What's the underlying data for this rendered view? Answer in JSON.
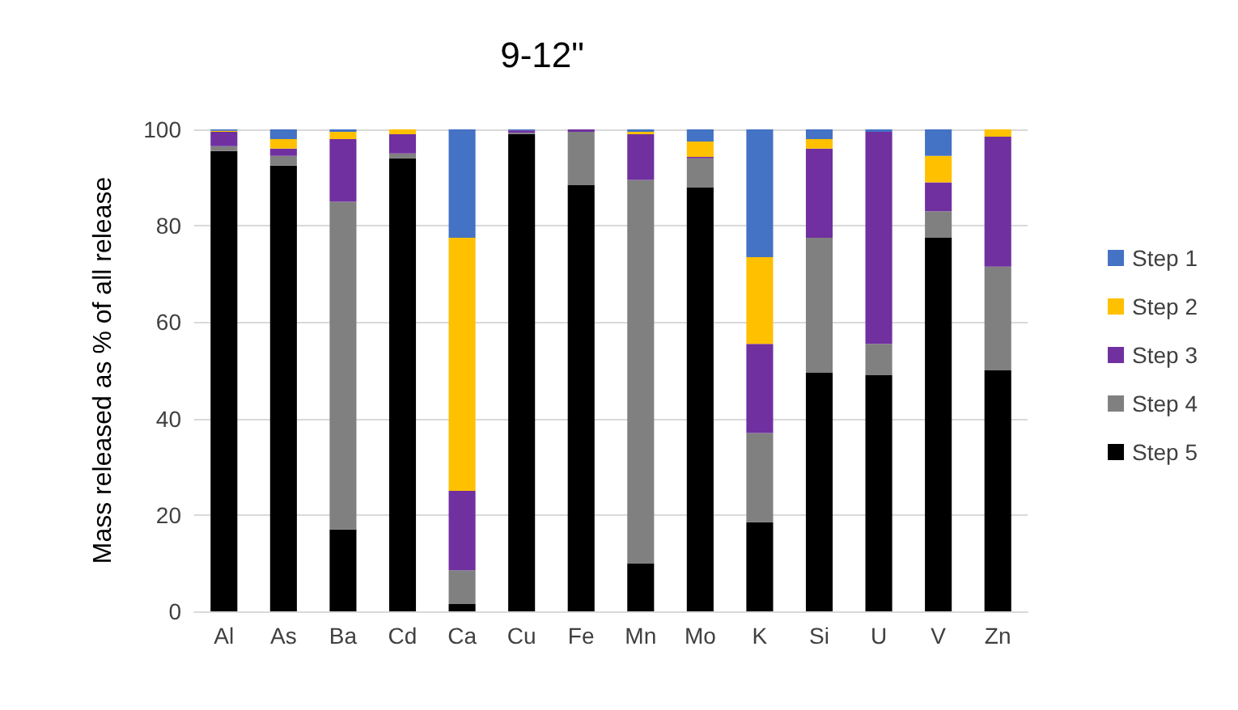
{
  "chart_data": {
    "type": "bar",
    "title": "9-12\"",
    "ylabel": "Mass released as % of all release",
    "categories": [
      "Al",
      "As",
      "Ba",
      "Cd",
      "Ca",
      "Cu",
      "Fe",
      "Mn",
      "Mo",
      "K",
      "Si",
      "U",
      "V",
      "Zn"
    ],
    "stacked": true,
    "ylim": [
      0,
      100
    ],
    "yticks": [
      0,
      20,
      40,
      60,
      80,
      100
    ],
    "grid": "y",
    "legend": "right",
    "series": [
      {
        "name": "Step 5",
        "color": "#000000",
        "values": [
          95.5,
          92.5,
          17,
          94,
          1.5,
          99,
          88.5,
          10,
          88,
          18.5,
          49.5,
          49,
          77.5,
          50
        ]
      },
      {
        "name": "Step 4",
        "color": "#808080",
        "values": [
          1,
          2,
          68,
          1,
          7,
          0.3,
          11,
          79.5,
          6,
          18.5,
          28,
          6.5,
          5.5,
          21.5
        ]
      },
      {
        "name": "Step 3",
        "color": "#7030a0",
        "values": [
          3,
          1.5,
          13,
          4,
          16.5,
          0.5,
          0.5,
          9.5,
          0.3,
          18.5,
          18.5,
          44,
          6,
          27
        ]
      },
      {
        "name": "Step 2",
        "color": "#ffc000",
        "values": [
          0.2,
          2,
          1.5,
          1,
          52.5,
          0,
          0,
          0.5,
          3.2,
          18,
          2,
          0,
          5.5,
          1.5
        ]
      },
      {
        "name": "Step 1",
        "color": "#4472c4",
        "values": [
          0.3,
          2,
          0.5,
          0,
          22.5,
          0.2,
          0,
          0.5,
          2.5,
          26.5,
          2,
          0.5,
          5.5,
          0
        ]
      }
    ]
  }
}
